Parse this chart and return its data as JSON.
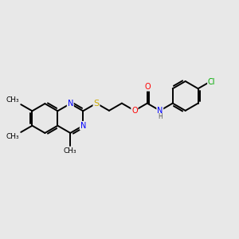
{
  "background_color": "#e8e8e8",
  "bond_color": "#000000",
  "atom_colors": {
    "N": "#0000ff",
    "S": "#ccaa00",
    "O": "#ff0000",
    "Cl": "#00aa00",
    "H": "#555555",
    "C": "#000000"
  },
  "figsize": [
    3.0,
    3.0
  ],
  "dpi": 100,
  "xlim": [
    0,
    10
  ],
  "ylim": [
    2,
    8
  ]
}
